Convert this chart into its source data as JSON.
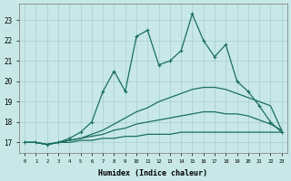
{
  "background_color": "#c8e8e8",
  "grid_color": "#a8cccc",
  "line_color": "#1a6e60",
  "xlabel": "Humidex (Indice chaleur)",
  "xlim": [
    -0.5,
    23.5
  ],
  "ylim": [
    16.5,
    23.8
  ],
  "yticks": [
    17,
    18,
    19,
    20,
    21,
    22,
    23
  ],
  "xticks": [
    0,
    1,
    2,
    3,
    4,
    5,
    6,
    7,
    8,
    9,
    10,
    11,
    12,
    13,
    14,
    15,
    16,
    17,
    18,
    19,
    20,
    21,
    22,
    23
  ],
  "jagged_x": [
    0,
    1,
    2,
    3,
    4,
    5,
    6,
    7,
    8,
    9,
    10,
    11,
    12,
    13,
    14,
    15,
    16,
    17,
    18,
    19,
    20,
    21,
    22,
    23
  ],
  "jagged_y": [
    17.0,
    17.0,
    16.9,
    17.0,
    17.2,
    17.5,
    18.0,
    19.5,
    20.5,
    19.5,
    22.2,
    22.5,
    20.8,
    21.0,
    21.5,
    23.3,
    22.0,
    21.2,
    21.8,
    20.0,
    19.5,
    18.8,
    18.0,
    17.5
  ],
  "smooth1_x": [
    0,
    1,
    2,
    3,
    4,
    5,
    6,
    7,
    8,
    9,
    10,
    11,
    12,
    13,
    14,
    15,
    16,
    17,
    18,
    19,
    20,
    21,
    22,
    23
  ],
  "smooth1_y": [
    17.0,
    17.0,
    16.9,
    17.0,
    17.1,
    17.2,
    17.4,
    17.6,
    17.9,
    18.2,
    18.5,
    18.7,
    19.0,
    19.2,
    19.4,
    19.6,
    19.7,
    19.7,
    19.6,
    19.4,
    19.2,
    19.0,
    18.8,
    17.6
  ],
  "smooth2_x": [
    0,
    1,
    2,
    3,
    4,
    5,
    6,
    7,
    8,
    9,
    10,
    11,
    12,
    13,
    14,
    15,
    16,
    17,
    18,
    19,
    20,
    21,
    22,
    23
  ],
  "smooth2_y": [
    17.0,
    17.0,
    16.9,
    17.0,
    17.1,
    17.2,
    17.3,
    17.4,
    17.6,
    17.7,
    17.9,
    18.0,
    18.1,
    18.2,
    18.3,
    18.4,
    18.5,
    18.5,
    18.4,
    18.4,
    18.3,
    18.1,
    17.9,
    17.6
  ],
  "smooth3_x": [
    0,
    1,
    2,
    3,
    4,
    5,
    6,
    7,
    8,
    9,
    10,
    11,
    12,
    13,
    14,
    15,
    16,
    17,
    18,
    19,
    20,
    21,
    22,
    23
  ],
  "smooth3_y": [
    17.0,
    17.0,
    16.9,
    17.0,
    17.0,
    17.1,
    17.1,
    17.2,
    17.2,
    17.3,
    17.3,
    17.4,
    17.4,
    17.4,
    17.5,
    17.5,
    17.5,
    17.5,
    17.5,
    17.5,
    17.5,
    17.5,
    17.5,
    17.5
  ]
}
